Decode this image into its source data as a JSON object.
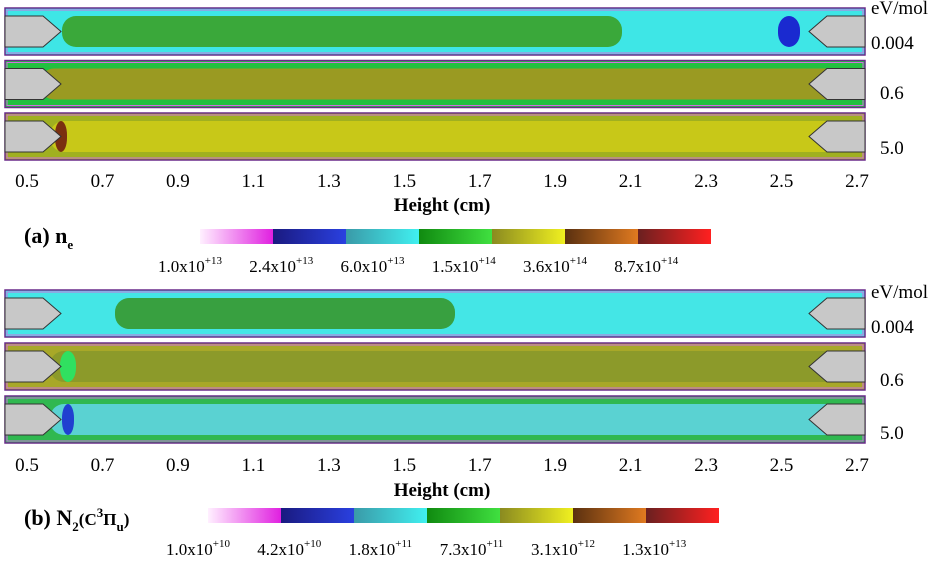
{
  "panels": [
    {
      "label": [
        {
          "text": "(a) n"
        },
        {
          "text": "e",
          "script": "sub"
        }
      ],
      "axis_label": "Height (cm)",
      "ticks": [
        "0.5",
        "0.7",
        "0.9",
        "1.1",
        "1.3",
        "1.5",
        "1.7",
        "1.9",
        "2.1",
        "2.3",
        "2.5",
        "2.7"
      ],
      "unit": "eV/mol",
      "rows": [
        "0.004",
        "0.6",
        "5.0"
      ],
      "colorbar": [
        {
          "base": "1.0x10",
          "exp": "+13"
        },
        {
          "base": "2.4x10",
          "exp": "+13"
        },
        {
          "base": "6.0x10",
          "exp": "+13"
        },
        {
          "base": "1.5x10",
          "exp": "+14"
        },
        {
          "base": "3.6x10",
          "exp": "+14"
        },
        {
          "base": "8.7x10",
          "exp": "+14"
        }
      ]
    },
    {
      "label": [
        {
          "text": "(b) N"
        },
        {
          "text": "2",
          "script": "sub"
        },
        {
          "text": "(C"
        },
        {
          "text": "3",
          "script": "sup"
        },
        {
          "text": "Π"
        },
        {
          "text": "u",
          "script": "sub"
        },
        {
          "text": ")"
        }
      ],
      "axis_label": "Height (cm)",
      "ticks": [
        "0.5",
        "0.7",
        "0.9",
        "1.1",
        "1.3",
        "1.5",
        "1.7",
        "1.9",
        "2.1",
        "2.3",
        "2.5",
        "2.7"
      ],
      "unit": "eV/mol",
      "rows": [
        "0.004",
        "0.6",
        "5.0"
      ],
      "colorbar": [
        {
          "base": "1.0x10",
          "exp": "+10"
        },
        {
          "base": "4.2x10",
          "exp": "+10"
        },
        {
          "base": "1.8x10",
          "exp": "+11"
        },
        {
          "base": "7.3x10",
          "exp": "+11"
        },
        {
          "base": "3.1x10",
          "exp": "+12"
        },
        {
          "base": "1.3x10",
          "exp": "+13"
        }
      ]
    }
  ]
}
